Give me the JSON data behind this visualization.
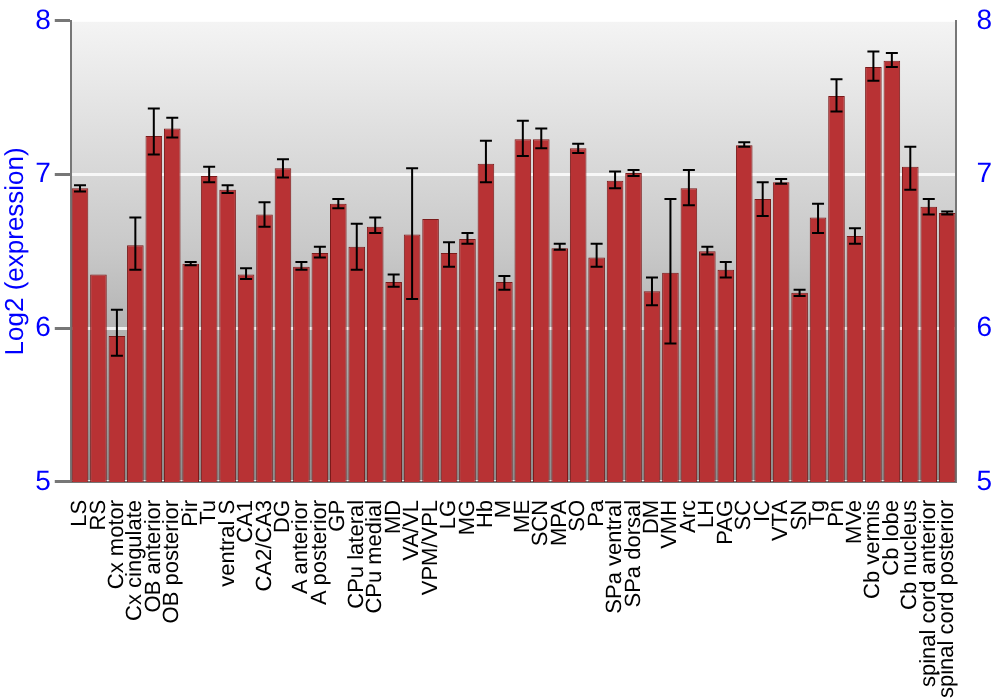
{
  "chart_data": {
    "type": "bar",
    "ylabel": "Log2 (expression)",
    "categories": [
      "LS",
      "RS",
      "Cx motor",
      "Cx cingulate",
      "OB anterior",
      "OB posterior",
      "Pir",
      "Tu",
      "ventral S",
      "CA1",
      "CA2/CA3",
      "DG",
      "A anterior",
      "A posterior",
      "GP",
      "CPu lateral",
      "CPu medial",
      "MD",
      "VA/VL",
      "VPM/VPL",
      "LG",
      "MG",
      "Hb",
      "M",
      "ME",
      "SCN",
      "MPA",
      "SO",
      "Pa",
      "SPa ventral",
      "SPa dorsal",
      "DM",
      "VMH",
      "Arc",
      "LH",
      "PAG",
      "SC",
      "IC",
      "VTA",
      "SN",
      "Tg",
      "Pn",
      "MVe",
      "Cb vermis",
      "Cb lobe",
      "Cb nucleus",
      "spinal cord anterior",
      "spinal cord posterior"
    ],
    "values": [
      6.91,
      6.35,
      5.95,
      6.54,
      7.25,
      7.3,
      6.42,
      6.99,
      6.9,
      6.35,
      6.74,
      7.04,
      6.4,
      6.49,
      6.81,
      6.53,
      6.66,
      6.3,
      6.61,
      6.71,
      6.49,
      6.58,
      7.07,
      6.3,
      7.23,
      7.23,
      6.52,
      7.17,
      6.46,
      6.96,
      7.01,
      6.24,
      6.36,
      6.91,
      6.5,
      6.38,
      7.19,
      6.84,
      6.95,
      6.23,
      6.72,
      7.51,
      6.6,
      7.7,
      7.74,
      7.05,
      6.79,
      6.75
    ],
    "errors": [
      [
        6.89,
        6.93
      ],
      null,
      [
        5.82,
        6.12
      ],
      [
        6.38,
        6.72
      ],
      [
        7.13,
        7.43
      ],
      [
        7.24,
        7.37
      ],
      [
        6.41,
        6.43
      ],
      [
        6.95,
        7.05
      ],
      [
        6.88,
        6.93
      ],
      [
        6.32,
        6.39
      ],
      [
        6.66,
        6.82
      ],
      [
        6.98,
        7.1
      ],
      [
        6.38,
        6.43
      ],
      [
        6.46,
        6.53
      ],
      [
        6.78,
        6.84
      ],
      [
        6.38,
        6.68
      ],
      [
        6.62,
        6.72
      ],
      [
        6.27,
        6.35
      ],
      [
        6.19,
        7.04
      ],
      null,
      [
        6.4,
        6.56
      ],
      [
        6.55,
        6.62
      ],
      [
        6.95,
        7.22
      ],
      [
        6.25,
        6.34
      ],
      [
        7.12,
        7.35
      ],
      [
        7.17,
        7.3
      ],
      [
        6.51,
        6.55
      ],
      [
        7.14,
        7.2
      ],
      [
        6.4,
        6.55
      ],
      [
        6.91,
        7.02
      ],
      [
        6.99,
        7.03
      ],
      [
        6.15,
        6.33
      ],
      [
        5.9,
        6.84
      ],
      [
        6.8,
        7.03
      ],
      [
        6.48,
        6.53
      ],
      [
        6.33,
        6.43
      ],
      [
        7.18,
        7.21
      ],
      [
        6.73,
        6.95
      ],
      [
        6.94,
        6.97
      ],
      [
        6.21,
        6.25
      ],
      [
        6.62,
        6.81
      ],
      [
        7.41,
        7.62
      ],
      [
        6.55,
        6.65
      ],
      [
        7.61,
        7.8
      ],
      [
        7.7,
        7.79
      ],
      [
        6.9,
        7.18
      ],
      [
        6.74,
        6.84
      ],
      [
        6.74,
        6.76
      ]
    ],
    "color": "#b83234",
    "ylim": [
      5,
      8
    ],
    "yticks": [
      5,
      6,
      7,
      8
    ],
    "y2lim": [
      5,
      8
    ],
    "y2ticks": [
      5,
      6,
      7,
      8
    ],
    "grid": "y",
    "legend": false
  }
}
